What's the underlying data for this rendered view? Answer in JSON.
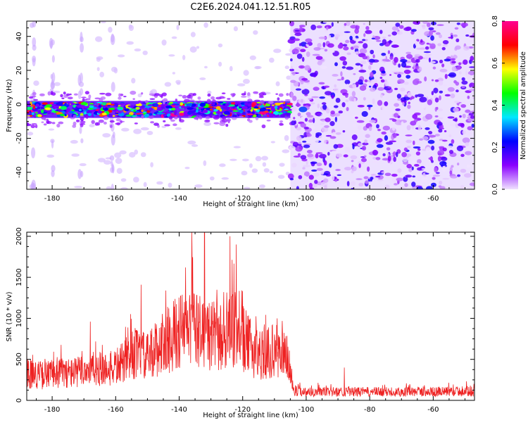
{
  "figure": {
    "title": "C2E6.2024.041.12.51.R05"
  },
  "chart_data": [
    {
      "type": "heatmap",
      "title": "C2E6.2024.041.12.51.R05",
      "xlabel": "Height of straight line (km)",
      "ylabel": "Frequency (Hz)",
      "xlim": [
        -188,
        -47
      ],
      "ylim": [
        -50,
        49
      ],
      "xticks": [
        -180,
        -160,
        -140,
        -120,
        -100,
        -80,
        -60
      ],
      "yticks": [
        -40,
        -20,
        0,
        20,
        40
      ],
      "signal_band": {
        "center_hz": -3,
        "halfwidth_hz": 4,
        "x_range_km": [
          -188,
          -99
        ]
      },
      "noise_boundary_km": -105,
      "colorbar": {
        "label": "Normalized spectral amplitude",
        "range": [
          0.0,
          0.8
        ],
        "ticks": [
          0.0,
          0.2,
          0.4,
          0.6,
          0.8
        ],
        "stops": [
          "#f0e2ff",
          "#8a00ff",
          "#0000ff",
          "#00e8ff",
          "#00ff00",
          "#ffff00",
          "#ff0000",
          "#ff0090"
        ]
      }
    },
    {
      "type": "line",
      "xlabel": "Height of straight line (km)",
      "ylabel": "SNR (10 * v/v)",
      "xlim": [
        -188,
        -47
      ],
      "ylim": [
        0,
        2050
      ],
      "xticks": [
        -180,
        -160,
        -140,
        -120,
        -100,
        -80,
        -60
      ],
      "yticks": [
        0,
        500,
        1000,
        1500,
        2000
      ],
      "color": "#ee2222",
      "envelope": {
        "x": [
          -188,
          -183,
          -178,
          -173,
          -169,
          -166,
          -162,
          -158,
          -154,
          -150,
          -146,
          -142,
          -138,
          -134,
          -130,
          -126,
          -122,
          -118,
          -114,
          -110,
          -106,
          -104,
          -100,
          -90,
          -80,
          -70,
          -60,
          -48
        ],
        "y": [
          420,
          380,
          420,
          420,
          470,
          480,
          470,
          560,
          720,
          650,
          840,
          980,
          1100,
          1050,
          980,
          950,
          1080,
          820,
          700,
          760,
          680,
          150,
          130,
          130,
          130,
          130,
          130,
          140
        ]
      },
      "peaks": [
        {
          "x": -188,
          "y": 770
        },
        {
          "x": -168,
          "y": 960
        },
        {
          "x": -152,
          "y": 1410
        },
        {
          "x": -138,
          "y": 1620
        },
        {
          "x": -136,
          "y": 2050
        },
        {
          "x": -132,
          "y": 2050
        },
        {
          "x": -124,
          "y": 2000
        },
        {
          "x": -122,
          "y": 1900
        },
        {
          "x": -88,
          "y": 400
        }
      ]
    }
  ]
}
